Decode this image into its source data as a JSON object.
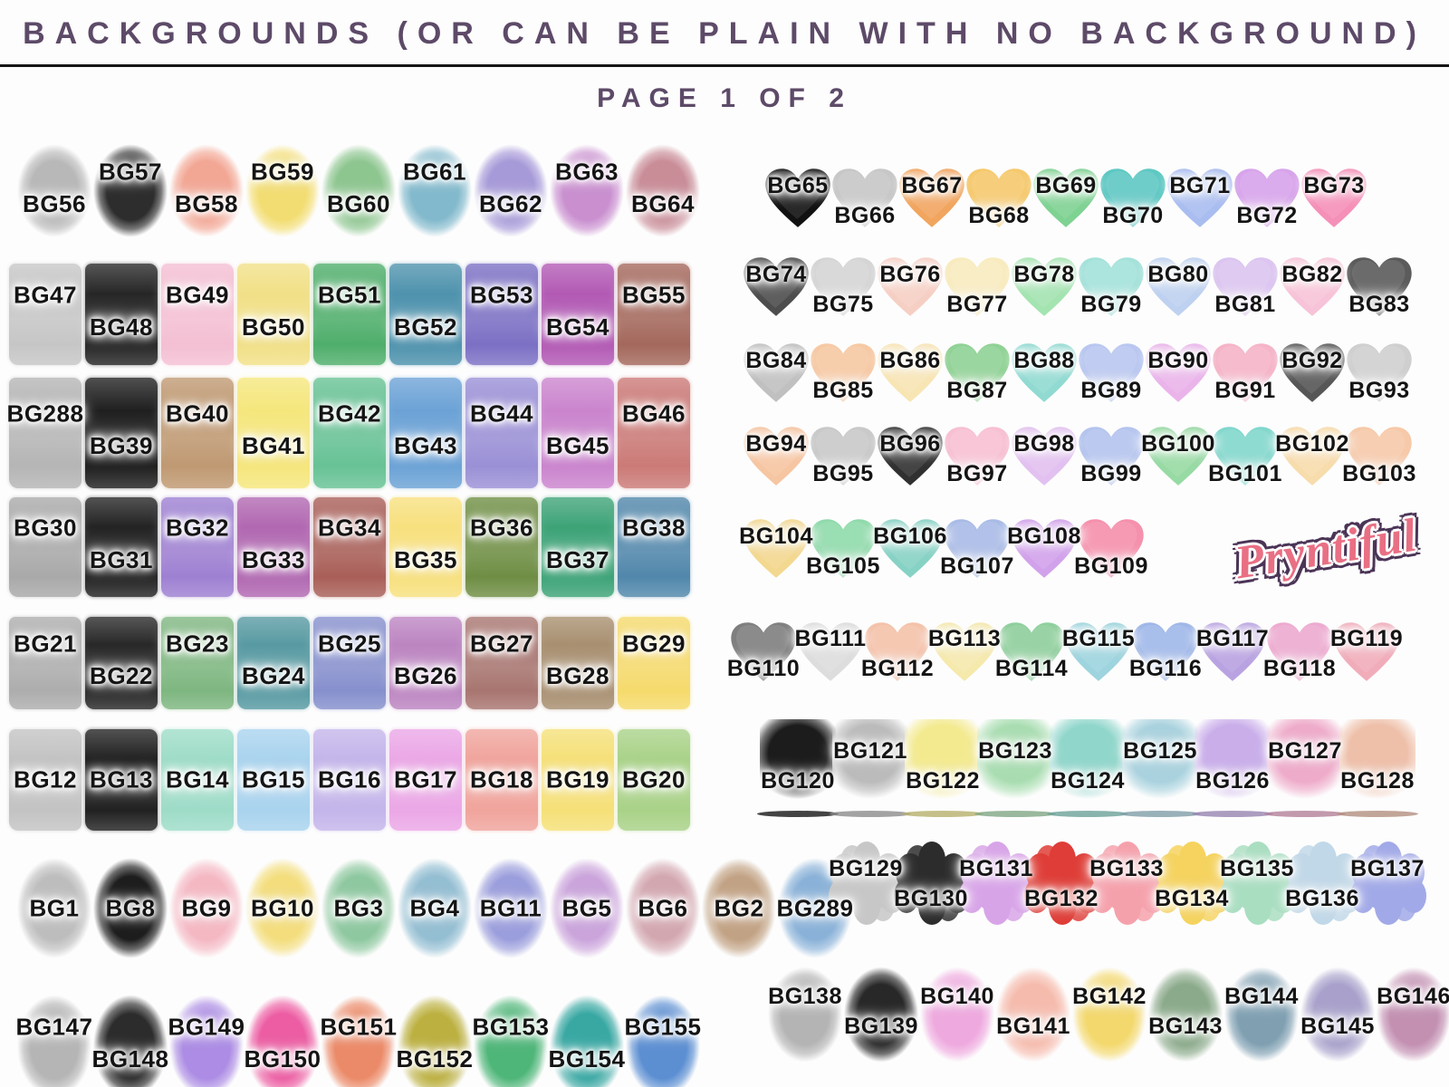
{
  "header": {
    "title": "BACKGROUNDS (OR CAN BE PLAIN WITH NO BACKGROUND)",
    "page_label": "PAGE 1 OF 2",
    "title_color": "#5d4a68"
  },
  "logo": {
    "text": "Pryntiful",
    "fill_color": "#e96f84",
    "outline_color": "#4b3557"
  },
  "left_rows": [
    {
      "shape": "splat",
      "phase": "down",
      "items": [
        {
          "label": "BG56",
          "color": "#b8b8b8"
        },
        {
          "label": "BG57",
          "color": "#2d2d2d"
        },
        {
          "label": "BG58",
          "color": "#f2a795"
        },
        {
          "label": "BG59",
          "color": "#f2dd72"
        },
        {
          "label": "BG60",
          "color": "#8ec690"
        },
        {
          "label": "BG61",
          "color": "#82b9cc"
        },
        {
          "label": "BG62",
          "color": "#a79ad8"
        },
        {
          "label": "BG63",
          "color": "#c98fcf"
        },
        {
          "label": "BG64",
          "color": "#c98d98"
        }
      ]
    },
    {
      "shape": "square",
      "phase": "up",
      "items": [
        {
          "label": "BG47",
          "color": "#c6c6c6"
        },
        {
          "label": "BG48",
          "color": "#262626"
        },
        {
          "label": "BG49",
          "color": "#f4bfd3"
        },
        {
          "label": "BG50",
          "color": "#f1e087"
        },
        {
          "label": "BG51",
          "color": "#4fae6b"
        },
        {
          "label": "BG52",
          "color": "#4e92ad"
        },
        {
          "label": "BG53",
          "color": "#7b70c4"
        },
        {
          "label": "BG54",
          "color": "#b259b4"
        },
        {
          "label": "BG55",
          "color": "#a4685c"
        }
      ]
    },
    {
      "shape": "square",
      "phase": "up",
      "items": [
        {
          "label": "BG288",
          "color": "#b5b5b5"
        },
        {
          "label": "BG39",
          "color": "#1f1f1f"
        },
        {
          "label": "BG40",
          "color": "#bf9972"
        },
        {
          "label": "BG41",
          "color": "#f5e67c"
        },
        {
          "label": "BG42",
          "color": "#67c295"
        },
        {
          "label": "BG43",
          "color": "#6ba2d6"
        },
        {
          "label": "BG44",
          "color": "#9a90d6"
        },
        {
          "label": "BG45",
          "color": "#ca84cd"
        },
        {
          "label": "BG46",
          "color": "#cb7a77"
        }
      ]
    },
    {
      "shape": "square",
      "phase": "up",
      "items": [
        {
          "label": "BG30",
          "color": "#a9a9a9"
        },
        {
          "label": "BG31",
          "color": "#232323"
        },
        {
          "label": "BG32",
          "color": "#9e80d2"
        },
        {
          "label": "BG33",
          "color": "#b168b1"
        },
        {
          "label": "BG34",
          "color": "#a95f58"
        },
        {
          "label": "BG35",
          "color": "#f7e07e"
        },
        {
          "label": "BG36",
          "color": "#6f8e44"
        },
        {
          "label": "BG37",
          "color": "#3da377"
        },
        {
          "label": "BG38",
          "color": "#5187ab"
        }
      ]
    },
    {
      "shape": "square",
      "phase": "up",
      "items": [
        {
          "label": "BG21",
          "color": "#adadad"
        },
        {
          "label": "BG22",
          "color": "#282828"
        },
        {
          "label": "BG23",
          "color": "#7eb680"
        },
        {
          "label": "BG24",
          "color": "#589aa2"
        },
        {
          "label": "BG25",
          "color": "#8690cd"
        },
        {
          "label": "BG26",
          "color": "#bc85c1"
        },
        {
          "label": "BG27",
          "color": "#a87570"
        },
        {
          "label": "BG28",
          "color": "#a88f70"
        },
        {
          "label": "BG29",
          "color": "#f5da6c"
        }
      ]
    },
    {
      "shape": "square",
      "phase": "center",
      "items": [
        {
          "label": "BG12",
          "color": "#c3c3c3"
        },
        {
          "label": "BG13",
          "color": "#212121"
        },
        {
          "label": "BG14",
          "color": "#9edcc8"
        },
        {
          "label": "BG15",
          "color": "#a9d3ee"
        },
        {
          "label": "BG16",
          "color": "#c4b5ea"
        },
        {
          "label": "BG17",
          "color": "#eba7e6"
        },
        {
          "label": "BG18",
          "color": "#f0a49c"
        },
        {
          "label": "BG19",
          "color": "#f5e078"
        },
        {
          "label": "BG20",
          "color": "#a9d288"
        }
      ]
    },
    {
      "shape": "splat",
      "phase": "center",
      "items": [
        {
          "label": "BG1",
          "color": "#bdbdbd"
        },
        {
          "label": "BG8",
          "color": "#1d1d1d"
        },
        {
          "label": "BG9",
          "color": "#f4b8c3"
        },
        {
          "label": "BG10",
          "color": "#f3dd7c"
        },
        {
          "label": "BG3",
          "color": "#8ec8a0"
        },
        {
          "label": "BG4",
          "color": "#94bed2"
        },
        {
          "label": "BG11",
          "color": "#9b9edc"
        },
        {
          "label": "BG5",
          "color": "#caa4db"
        },
        {
          "label": "BG6",
          "color": "#d3a7b0"
        },
        {
          "label": "BG2",
          "color": "#c2a284"
        },
        {
          "label": "BG289",
          "color": "#8ab2d8"
        }
      ]
    },
    {
      "shape": "splat",
      "phase": "up",
      "items": [
        {
          "label": "BG147",
          "color": "#b5b5b5"
        },
        {
          "label": "BG148",
          "color": "#2c2c2c"
        },
        {
          "label": "BG149",
          "color": "#ac8ce4"
        },
        {
          "label": "BG150",
          "color": "#ec5da3"
        },
        {
          "label": "BG151",
          "color": "#eb8a68"
        },
        {
          "label": "BG152",
          "color": "#bcb040"
        },
        {
          "label": "BG153",
          "color": "#4fb679"
        },
        {
          "label": "BG154",
          "color": "#39a8a3"
        },
        {
          "label": "BG155",
          "color": "#5c8fd2"
        }
      ]
    }
  ],
  "right_rows": [
    {
      "shape": "heart",
      "phase": "up",
      "items": [
        {
          "label": "BG65",
          "color": "#111111"
        },
        {
          "label": "BG66",
          "color": "#c7c7c7"
        },
        {
          "label": "BG67",
          "color": "#f1a55e"
        },
        {
          "label": "BG68",
          "color": "#f5c96d"
        },
        {
          "label": "BG69",
          "color": "#7ed292"
        },
        {
          "label": "BG70",
          "color": "#5ec8c3"
        },
        {
          "label": "BG71",
          "color": "#a9bdf0"
        },
        {
          "label": "BG72",
          "color": "#d8a4eb"
        },
        {
          "label": "BG73",
          "color": "#f590b8"
        }
      ]
    },
    {
      "shape": "heart",
      "phase": "up",
      "items": [
        {
          "label": "BG74",
          "color": "#4d4d4d"
        },
        {
          "label": "BG75",
          "color": "#d5d5d5"
        },
        {
          "label": "BG76",
          "color": "#f6cfc4"
        },
        {
          "label": "BG77",
          "color": "#f8ebbe"
        },
        {
          "label": "BG78",
          "color": "#a4e4b1"
        },
        {
          "label": "BG79",
          "color": "#a4e2da"
        },
        {
          "label": "BG80",
          "color": "#bed1f0"
        },
        {
          "label": "BG81",
          "color": "#dcc5f0"
        },
        {
          "label": "BG82",
          "color": "#f7c3d8"
        },
        {
          "label": "BG83",
          "color": "#5b5b5b"
        }
      ]
    },
    {
      "shape": "heart",
      "phase": "up",
      "items": [
        {
          "label": "BG84",
          "color": "#c0c0c0"
        },
        {
          "label": "BG85",
          "color": "#f6c9a4"
        },
        {
          "label": "BG86",
          "color": "#f8e5b4"
        },
        {
          "label": "BG87",
          "color": "#90d295"
        },
        {
          "label": "BG88",
          "color": "#90dad2"
        },
        {
          "label": "BG89",
          "color": "#b9c7f0"
        },
        {
          "label": "BG90",
          "color": "#eab4ea"
        },
        {
          "label": "BG91",
          "color": "#f5b4c8"
        },
        {
          "label": "BG92",
          "color": "#565656"
        },
        {
          "label": "BG93",
          "color": "#cfcfcf"
        }
      ]
    },
    {
      "shape": "heart",
      "phase": "up",
      "items": [
        {
          "label": "BG94",
          "color": "#f6c5a1"
        },
        {
          "label": "BG95",
          "color": "#c9c9c9"
        },
        {
          "label": "BG96",
          "color": "#303030"
        },
        {
          "label": "BG97",
          "color": "#f7c0d3"
        },
        {
          "label": "BG98",
          "color": "#e2c1f0"
        },
        {
          "label": "BG99",
          "color": "#b4c4ee"
        },
        {
          "label": "BG100",
          "color": "#97daa4"
        },
        {
          "label": "BG101",
          "color": "#81d7cd"
        },
        {
          "label": "BG102",
          "color": "#f7dcac"
        },
        {
          "label": "BG103",
          "color": "#f6c9a9"
        }
      ]
    },
    {
      "shape": "heart",
      "phase": "up",
      "with_logo": true,
      "items": [
        {
          "label": "BG104",
          "color": "#f3d890"
        },
        {
          "label": "BG105",
          "color": "#90daab"
        },
        {
          "label": "BG106",
          "color": "#86d2c5"
        },
        {
          "label": "BG107",
          "color": "#a9bbe6"
        },
        {
          "label": "BG108",
          "color": "#d2a1eb"
        },
        {
          "label": "BG109",
          "color": "#f590ad"
        }
      ]
    },
    {
      "shape": "scribble",
      "phase": "down",
      "items": [
        {
          "label": "BG110",
          "color": "#6e6e6e"
        },
        {
          "label": "BG111",
          "color": "#d9d9d9"
        },
        {
          "label": "BG112",
          "color": "#f3bb9f"
        },
        {
          "label": "BG113",
          "color": "#f5e7a1"
        },
        {
          "label": "BG114",
          "color": "#80c990"
        },
        {
          "label": "BG115",
          "color": "#90cfda"
        },
        {
          "label": "BG116",
          "color": "#93aee6"
        },
        {
          "label": "BG117",
          "color": "#b096de"
        },
        {
          "label": "BG118",
          "color": "#ec9fca"
        },
        {
          "label": "BG119",
          "color": "#f0a1b1"
        }
      ]
    },
    {
      "shape": "splash",
      "phase": "down",
      "items": [
        {
          "label": "BG120",
          "color": "#1c1c1c"
        },
        {
          "label": "BG121",
          "color": "#bbbbbb"
        },
        {
          "label": "BG122",
          "color": "#f3ea90"
        },
        {
          "label": "BG123",
          "color": "#a9ddb1"
        },
        {
          "label": "BG124",
          "color": "#90d6cb"
        },
        {
          "label": "BG125",
          "color": "#a9d2de"
        },
        {
          "label": "BG126",
          "color": "#c9aeea"
        },
        {
          "label": "BG127",
          "color": "#eeabca"
        },
        {
          "label": "BG128",
          "color": "#eebfa9"
        }
      ]
    },
    {
      "shape": "scallop",
      "phase": "up",
      "items": [
        {
          "label": "BG129",
          "color": "#c7c7c7"
        },
        {
          "label": "BG130",
          "color": "#2c2c2c"
        },
        {
          "label": "BG131",
          "color": "#d8a4e8"
        },
        {
          "label": "BG132",
          "color": "#df3d37"
        },
        {
          "label": "BG133",
          "color": "#f5a1ac"
        },
        {
          "label": "BG134",
          "color": "#f5d35e"
        },
        {
          "label": "BG135",
          "color": "#a9dec1"
        },
        {
          "label": "BG136",
          "color": "#c1d8e8"
        },
        {
          "label": "BG137",
          "color": "#a1a9e8"
        }
      ]
    },
    {
      "shape": "splat",
      "phase": "up",
      "items": [
        {
          "label": "BG138",
          "color": "#b4b4b4"
        },
        {
          "label": "BG139",
          "color": "#282828"
        },
        {
          "label": "BG140",
          "color": "#eea9de"
        },
        {
          "label": "BG141",
          "color": "#f5bcae"
        },
        {
          "label": "BG142",
          "color": "#f3d86d"
        },
        {
          "label": "BG143",
          "color": "#8baa8b"
        },
        {
          "label": "BG144",
          "color": "#80a0b2"
        },
        {
          "label": "BG145",
          "color": "#a9a1cb"
        },
        {
          "label": "BG146",
          "color": "#c390b2"
        }
      ]
    }
  ]
}
